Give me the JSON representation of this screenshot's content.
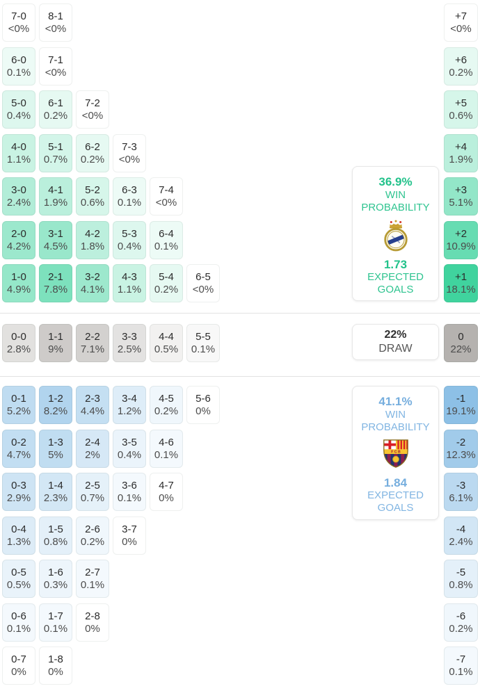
{
  "theme": {
    "home_accent": "#23c28b",
    "away_accent": "#76aede",
    "draw_number_color": "#2f2f2f",
    "draw_label_color": "#555555",
    "home_cell_base": "#2fcf95",
    "draw_cell_base": "#b5b2af",
    "away_cell_base": "#85bce4"
  },
  "panels": {
    "home": {
      "win_probability": "36.9%",
      "win_label": "WIN PROBABILITY",
      "expected_goals": "1.73",
      "goals_label": "EXPECTED GOALS",
      "crest_icon": "real-madrid-crest"
    },
    "draw": {
      "probability": "22%",
      "label": "DRAW"
    },
    "away": {
      "win_probability": "41.1%",
      "win_label": "WIN PROBABILITY",
      "expected_goals": "1.84",
      "goals_label": "EXPECTED GOALS",
      "crest_icon": "barcelona-crest"
    }
  },
  "chart_data": {
    "type": "heatmap",
    "description": "Correct-score probability matrix with goal-difference totals; home (green) scores left of dash, away (blue) right",
    "cell_format": [
      "score",
      "probability_label",
      "probability_value_pct"
    ],
    "home_win_rows": [
      [
        [
          "7-0",
          "<0%",
          0
        ],
        [
          "8-1",
          "<0%",
          0
        ]
      ],
      [
        [
          "6-0",
          "0.1%",
          0.1
        ],
        [
          "7-1",
          "<0%",
          0
        ]
      ],
      [
        [
          "5-0",
          "0.4%",
          0.4
        ],
        [
          "6-1",
          "0.2%",
          0.2
        ],
        [
          "7-2",
          "<0%",
          0
        ]
      ],
      [
        [
          "4-0",
          "1.1%",
          1.1
        ],
        [
          "5-1",
          "0.7%",
          0.7
        ],
        [
          "6-2",
          "0.2%",
          0.2
        ],
        [
          "7-3",
          "<0%",
          0
        ]
      ],
      [
        [
          "3-0",
          "2.4%",
          2.4
        ],
        [
          "4-1",
          "1.9%",
          1.9
        ],
        [
          "5-2",
          "0.6%",
          0.6
        ],
        [
          "6-3",
          "0.1%",
          0.1
        ],
        [
          "7-4",
          "<0%",
          0
        ]
      ],
      [
        [
          "2-0",
          "4.2%",
          4.2
        ],
        [
          "3-1",
          "4.5%",
          4.5
        ],
        [
          "4-2",
          "1.8%",
          1.8
        ],
        [
          "5-3",
          "0.4%",
          0.4
        ],
        [
          "6-4",
          "0.1%",
          0.1
        ]
      ],
      [
        [
          "1-0",
          "4.9%",
          4.9
        ],
        [
          "2-1",
          "7.8%",
          7.8
        ],
        [
          "3-2",
          "4.1%",
          4.1
        ],
        [
          "4-3",
          "1.1%",
          1.1
        ],
        [
          "5-4",
          "0.2%",
          0.2
        ],
        [
          "6-5",
          "<0%",
          0
        ]
      ]
    ],
    "draw_rows": [
      [
        [
          "0-0",
          "2.8%",
          2.8
        ],
        [
          "1-1",
          "9%",
          9
        ],
        [
          "2-2",
          "7.1%",
          7.1
        ],
        [
          "3-3",
          "2.5%",
          2.5
        ],
        [
          "4-4",
          "0.5%",
          0.5
        ],
        [
          "5-5",
          "0.1%",
          0.1
        ]
      ]
    ],
    "away_win_rows": [
      [
        [
          "0-1",
          "5.2%",
          5.2
        ],
        [
          "1-2",
          "8.2%",
          8.2
        ],
        [
          "2-3",
          "4.4%",
          4.4
        ],
        [
          "3-4",
          "1.2%",
          1.2
        ],
        [
          "4-5",
          "0.2%",
          0.2
        ],
        [
          "5-6",
          "0%",
          0
        ]
      ],
      [
        [
          "0-2",
          "4.7%",
          4.7
        ],
        [
          "1-3",
          "5%",
          5
        ],
        [
          "2-4",
          "2%",
          2
        ],
        [
          "3-5",
          "0.4%",
          0.4
        ],
        [
          "4-6",
          "0.1%",
          0.1
        ]
      ],
      [
        [
          "0-3",
          "2.9%",
          2.9
        ],
        [
          "1-4",
          "2.3%",
          2.3
        ],
        [
          "2-5",
          "0.7%",
          0.7
        ],
        [
          "3-6",
          "0.1%",
          0.1
        ],
        [
          "4-7",
          "0%",
          0
        ]
      ],
      [
        [
          "0-4",
          "1.3%",
          1.3
        ],
        [
          "1-5",
          "0.8%",
          0.8
        ],
        [
          "2-6",
          "0.2%",
          0.2
        ],
        [
          "3-7",
          "0%",
          0
        ]
      ],
      [
        [
          "0-5",
          "0.5%",
          0.5
        ],
        [
          "1-6",
          "0.3%",
          0.3
        ],
        [
          "2-7",
          "0.1%",
          0.1
        ]
      ],
      [
        [
          "0-6",
          "0.1%",
          0.1
        ],
        [
          "1-7",
          "0.1%",
          0.1
        ],
        [
          "2-8",
          "0%",
          0
        ]
      ],
      [
        [
          "0-7",
          "0%",
          0
        ],
        [
          "1-8",
          "0%",
          0
        ]
      ]
    ],
    "goal_difference": {
      "plus": [
        [
          "+7",
          "<0%",
          0
        ],
        [
          "+6",
          "0.2%",
          0.2
        ],
        [
          "+5",
          "0.6%",
          0.6
        ],
        [
          "+4",
          "1.9%",
          1.9
        ],
        [
          "+3",
          "5.1%",
          5.1
        ],
        [
          "+2",
          "10.9%",
          10.9
        ],
        [
          "+1",
          "18.1%",
          18.1
        ]
      ],
      "zero": [
        [
          "0",
          "22%",
          22
        ]
      ],
      "minus": [
        [
          "-1",
          "19.1%",
          19.1
        ],
        [
          "-2",
          "12.3%",
          12.3
        ],
        [
          "-3",
          "6.1%",
          6.1
        ],
        [
          "-4",
          "2.4%",
          2.4
        ],
        [
          "-5",
          "0.8%",
          0.8
        ],
        [
          "-6",
          "0.2%",
          0.2
        ],
        [
          "-7",
          "0.1%",
          0.1
        ]
      ]
    }
  }
}
